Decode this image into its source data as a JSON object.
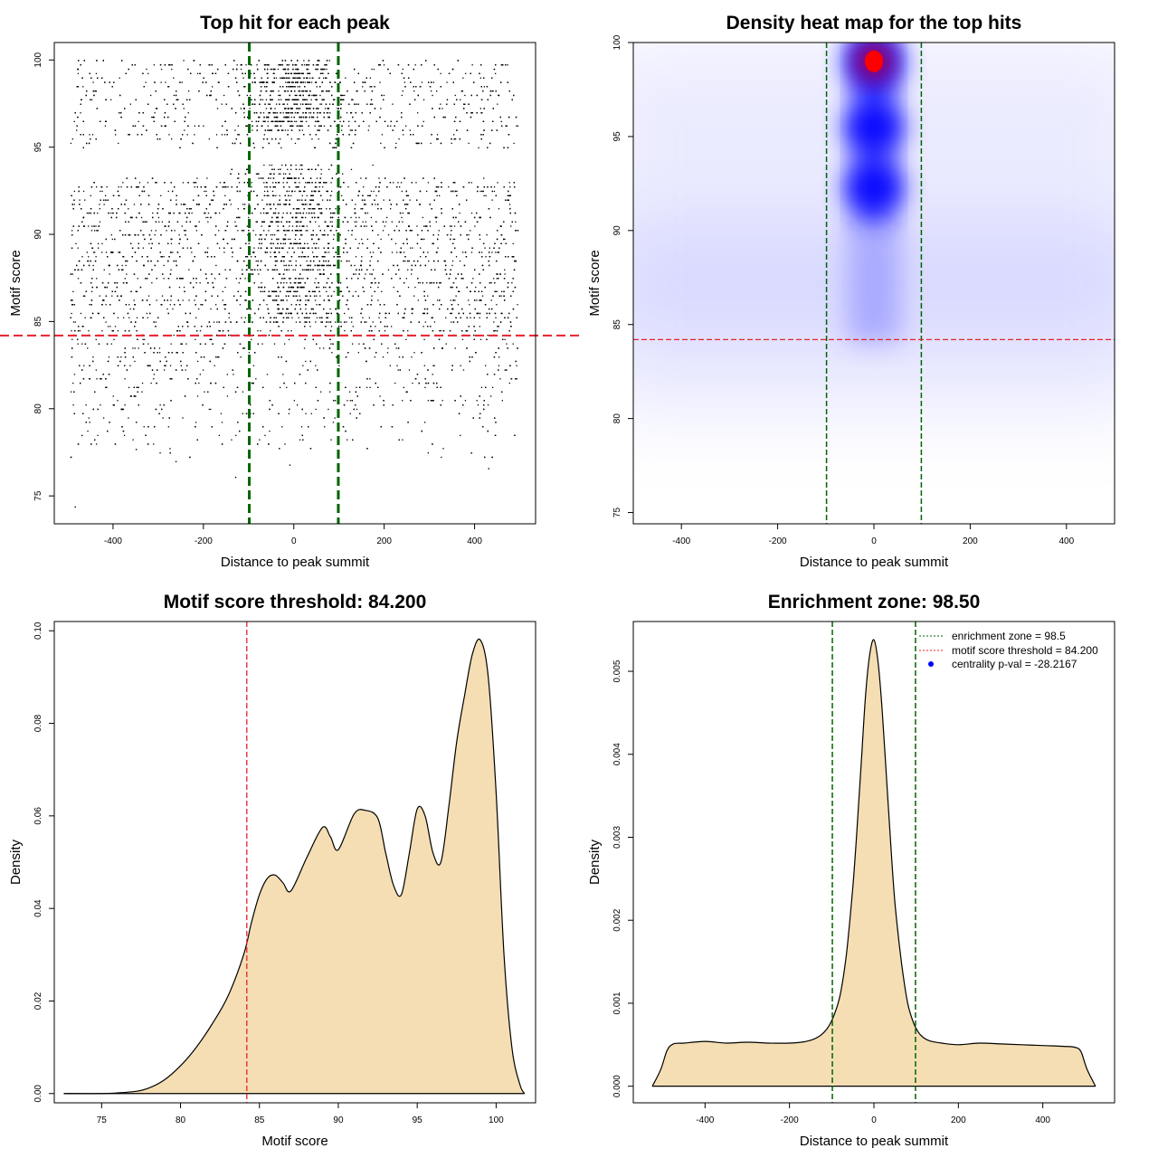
{
  "panels": [
    {
      "title": "Top hit for each peak",
      "xlabel": "Distance to peak summit",
      "ylabel": "Motif score"
    },
    {
      "title": "Density heat map for the top hits",
      "xlabel": "Distance to peak summit",
      "ylabel": "Motif score"
    },
    {
      "title": "Motif score threshold: 84.200",
      "xlabel": "Motif score",
      "ylabel": "Density"
    },
    {
      "title": "Enrichment zone: 98.50",
      "xlabel": "Distance to peak summit",
      "ylabel": "Density",
      "legend": [
        "enrichment zone = 98.5",
        "motif score threshold = 84.200",
        "centrality p-val = -28.2167"
      ]
    }
  ],
  "chart_data": [
    {
      "type": "scatter",
      "title": "Top hit for each peak",
      "xlabel": "Distance to peak summit",
      "ylabel": "Motif score",
      "xlim": [
        -530,
        535
      ],
      "ylim": [
        73.4,
        101.0
      ],
      "x_ticks": [
        "-400",
        "-200",
        "0",
        "200",
        "400"
      ],
      "x_tick_values": [
        -400,
        -200,
        0,
        200,
        400
      ],
      "y_ticks": [
        "75",
        "80",
        "85",
        "90",
        "95",
        "100"
      ],
      "y_tick_values": [
        75,
        80,
        85,
        90,
        95,
        100
      ],
      "vlines": [
        -98.5,
        98.5
      ],
      "hline": 84.2,
      "x_range": [
        -495,
        495
      ],
      "point_count": 9000,
      "point_color": "#000000",
      "vline_color": "#006400",
      "hline_color": "#e8202a"
    },
    {
      "type": "heatmap",
      "title": "Density heat map for the top hits",
      "xlabel": "Distance to peak summit",
      "ylabel": "Motif score",
      "xlim": [
        -500,
        500
      ],
      "ylim": [
        74.4,
        100.0
      ],
      "x_ticks": [
        "-400",
        "-200",
        "0",
        "200",
        "400"
      ],
      "x_tick_values": [
        -400,
        -200,
        0,
        200,
        400
      ],
      "y_ticks": [
        "75",
        "80",
        "85",
        "90",
        "95",
        "100"
      ],
      "y_tick_values": [
        75,
        80,
        85,
        90,
        95,
        100
      ],
      "vlines": [
        -98.5,
        98.5
      ],
      "hline": 84.2,
      "hotspots": [
        {
          "x": 0,
          "y": 99.0,
          "intensity": 1.0
        },
        {
          "x": 0,
          "y": 95.5,
          "intensity": 0.55
        },
        {
          "x": 0,
          "y": 92.3,
          "intensity": 0.5
        }
      ],
      "color_low": "#ffffff",
      "color_mid": "#0000ff",
      "color_high": "#ff0000"
    },
    {
      "type": "area",
      "title": "Motif score threshold: 84.200",
      "xlabel": "Motif score",
      "ylabel": "Density",
      "xlim": [
        72,
        102.5
      ],
      "ylim": [
        -0.002,
        0.102
      ],
      "x_ticks": [
        "75",
        "80",
        "85",
        "90",
        "95",
        "100"
      ],
      "x_tick_values": [
        75,
        80,
        85,
        90,
        95,
        100
      ],
      "y_ticks": [
        "0.00",
        "0.02",
        "0.04",
        "0.06",
        "0.08",
        "0.10"
      ],
      "y_tick_values": [
        0.0,
        0.02,
        0.04,
        0.06,
        0.08,
        0.1
      ],
      "vline": 84.2,
      "fill_color": "#f5deb3",
      "x": [
        72.6,
        75,
        77,
        78,
        79,
        80,
        81,
        82,
        83,
        84,
        84.5,
        85,
        85.5,
        86,
        86.5,
        87,
        88,
        89,
        89.5,
        90,
        91,
        91.7,
        92.5,
        93,
        93.5,
        94,
        94.5,
        95,
        95.5,
        96,
        96.5,
        97,
        97.5,
        98,
        98.5,
        99,
        99.5,
        100,
        100.5,
        101,
        101.5,
        101.8
      ],
      "y": [
        0.0,
        0.0,
        0.0004,
        0.0012,
        0.003,
        0.006,
        0.01,
        0.015,
        0.021,
        0.03,
        0.037,
        0.043,
        0.0465,
        0.0472,
        0.0455,
        0.0438,
        0.051,
        0.0575,
        0.0555,
        0.0527,
        0.0604,
        0.0612,
        0.0595,
        0.052,
        0.045,
        0.043,
        0.052,
        0.0615,
        0.06,
        0.052,
        0.05,
        0.062,
        0.076,
        0.086,
        0.095,
        0.098,
        0.09,
        0.065,
        0.03,
        0.01,
        0.002,
        0.0
      ]
    },
    {
      "type": "area",
      "title": "Enrichment zone: 98.50",
      "xlabel": "Distance to peak summit",
      "ylabel": "Density",
      "xlim": [
        -570,
        570
      ],
      "ylim": [
        -0.0002,
        0.0056
      ],
      "x_ticks": [
        "-400",
        "-200",
        "0",
        "200",
        "400"
      ],
      "x_tick_values": [
        -400,
        -200,
        0,
        200,
        400
      ],
      "y_ticks": [
        "0.000",
        "0.001",
        "0.002",
        "0.003",
        "0.004",
        "0.005"
      ],
      "y_tick_values": [
        0.0,
        0.001,
        0.002,
        0.003,
        0.004,
        0.005
      ],
      "vlines": [
        -98.5,
        98.5
      ],
      "fill_color": "#f5deb3",
      "x": [
        -525,
        -505,
        -490,
        -475,
        -450,
        -400,
        -350,
        -300,
        -250,
        -200,
        -160,
        -130,
        -110,
        -95,
        -80,
        -65,
        -50,
        -40,
        -30,
        -20,
        -10,
        0,
        10,
        20,
        30,
        40,
        50,
        65,
        80,
        95,
        110,
        130,
        160,
        200,
        250,
        300,
        350,
        400,
        450,
        475,
        490,
        505,
        525
      ],
      "y": [
        0.0,
        0.0002,
        0.00043,
        0.00051,
        0.00052,
        0.00054,
        0.00052,
        0.00053,
        0.00052,
        0.00052,
        0.00054,
        0.0006,
        0.0007,
        0.00085,
        0.0011,
        0.0016,
        0.0024,
        0.0031,
        0.0039,
        0.0047,
        0.0052,
        0.00538,
        0.0051,
        0.0045,
        0.0037,
        0.0029,
        0.0022,
        0.0015,
        0.001,
        0.00075,
        0.00062,
        0.00055,
        0.00052,
        0.0005,
        0.00052,
        0.00051,
        0.0005,
        0.00049,
        0.00048,
        0.00047,
        0.00042,
        0.0002,
        0.0
      ]
    }
  ]
}
